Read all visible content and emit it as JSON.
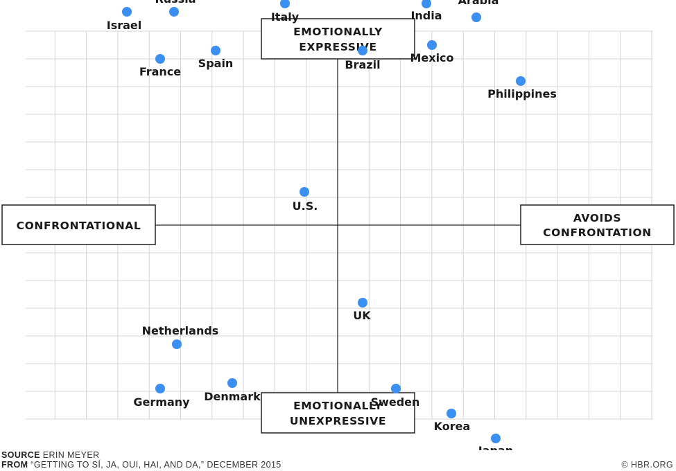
{
  "chart_data": {
    "type": "scatter",
    "x_axis": {
      "negative_label": "CONFRONTATIONAL",
      "positive_label": [
        "AVOIDS",
        "CONFRONTATION"
      ],
      "range": [
        -10,
        10
      ]
    },
    "y_axis": {
      "positive_label": [
        "EMOTIONALLY",
        "EXPRESSIVE"
      ],
      "negative_label": [
        "EMOTIONALLY",
        "UNEXPRESSIVE"
      ],
      "range": [
        -10,
        10
      ]
    },
    "grid": true,
    "point_color": "#3b8ff0",
    "points": [
      {
        "label": "Israel",
        "x": -7.6,
        "y": 7.7
      },
      {
        "label": "Russia",
        "x": -5.9,
        "y": 7.7
      },
      {
        "label": "France",
        "x": -6.4,
        "y": 6.0
      },
      {
        "label": "Spain",
        "x": -4.4,
        "y": 6.3
      },
      {
        "label": "Italy",
        "x": -1.9,
        "y": 8.0
      },
      {
        "label": "Brazil",
        "x": 0.9,
        "y": 6.3
      },
      {
        "label": "India",
        "x": 3.2,
        "y": 8.0
      },
      {
        "label": "Mexico",
        "x": 3.4,
        "y": 6.5
      },
      {
        "label": "Saudi Arabia",
        "x": 5.0,
        "y": 7.5
      },
      {
        "label": "Philippines",
        "x": 6.6,
        "y": 5.2
      },
      {
        "label": "U.S.",
        "x": -1.2,
        "y": 1.2
      },
      {
        "label": "Netherlands",
        "x": -5.8,
        "y": -4.3
      },
      {
        "label": "Germany",
        "x": -6.4,
        "y": -5.9
      },
      {
        "label": "Denmark",
        "x": -3.8,
        "y": -5.7
      },
      {
        "label": "UK",
        "x": 0.9,
        "y": -2.8
      },
      {
        "label": "Sweden",
        "x": 2.1,
        "y": -5.9
      },
      {
        "label": "Korea",
        "x": 4.1,
        "y": -6.8
      },
      {
        "label": "Japan",
        "x": 5.7,
        "y": -7.7
      }
    ]
  },
  "footer": {
    "source_key": "SOURCE",
    "source_value": "ERIN MEYER",
    "from_key": "FROM",
    "from_value": "“GETTING TO SÍ, JA, OUI, HAI, AND DA,” DECEMBER 2015",
    "credit": "© HBR.ORG"
  }
}
